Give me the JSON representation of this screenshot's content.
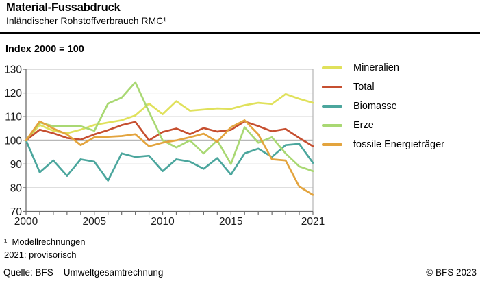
{
  "header": {
    "title": "Material-Fussabdruck",
    "subtitle": "Inländischer Rohstoffverbrauch RMC¹"
  },
  "chart_data": {
    "type": "line",
    "index_label": "Index 2000 = 100",
    "x": [
      2000,
      2001,
      2002,
      2003,
      2004,
      2005,
      2006,
      2007,
      2008,
      2009,
      2010,
      2011,
      2012,
      2013,
      2014,
      2015,
      2016,
      2017,
      2018,
      2019,
      2020,
      2021
    ],
    "series": [
      {
        "name": "Mineralien",
        "color": "#e0e15b",
        "values": [
          100,
          106.5,
          104,
          103,
          104.5,
          106.5,
          107.5,
          108.5,
          110.5,
          115.5,
          111,
          116.5,
          112.5,
          113,
          113.5,
          113.3,
          114.8,
          115.8,
          115.3,
          119.5,
          117.5,
          115.8
        ]
      },
      {
        "name": "Total",
        "color": "#c64f30",
        "values": [
          100,
          104.5,
          103,
          101,
          100.3,
          102.5,
          104.3,
          106.4,
          107.8,
          100,
          103.5,
          105,
          102.6,
          105.2,
          103.7,
          104.4,
          108,
          106,
          103.8,
          104.8,
          101,
          97.5
        ]
      },
      {
        "name": "Biomasse",
        "color": "#4ba69d",
        "values": [
          100,
          86.5,
          91.5,
          85,
          92,
          91,
          83,
          94.5,
          93,
          93.5,
          87,
          92,
          91,
          88,
          92.5,
          85.5,
          94.5,
          96.5,
          93,
          98,
          98.5,
          90.5
        ]
      },
      {
        "name": "Erze",
        "color": "#a9d873",
        "values": [
          100,
          107.5,
          106,
          106,
          106,
          104,
          115.5,
          118,
          124.5,
          112,
          100,
          97,
          100,
          94.5,
          100,
          90,
          105.5,
          99,
          101.3,
          94.5,
          89,
          87
        ]
      },
      {
        "name": "fossile Energieträger",
        "color": "#e3a43e",
        "values": [
          100,
          108,
          105,
          102.5,
          98,
          101.3,
          101.5,
          101.8,
          102.6,
          97.5,
          99,
          100,
          101.3,
          102.8,
          99.4,
          105.5,
          108.5,
          102.5,
          92,
          91.5,
          80.5,
          77
        ]
      }
    ],
    "ylim": [
      70,
      130
    ],
    "yticks": [
      70,
      80,
      90,
      100,
      110,
      120,
      130
    ],
    "xticks_labeled": [
      2000,
      2005,
      2010,
      2015,
      2021
    ],
    "emphasized_gridline": 100,
    "grid": true,
    "legend_position": "right",
    "colors": {
      "grid_light": "#c9c9c9",
      "grid_emphasis": "#8c8c8c",
      "axis": "#6e6e6e",
      "right_border": "#b3b3b3",
      "tick_label": "#1a1a1a"
    }
  },
  "footnotes": [
    "¹  Modellrechnungen",
    "2021: provisorisch"
  ],
  "footer": {
    "source": "Quelle: BFS – Umweltgesamtrechnung",
    "copyright": "© BFS 2023"
  }
}
